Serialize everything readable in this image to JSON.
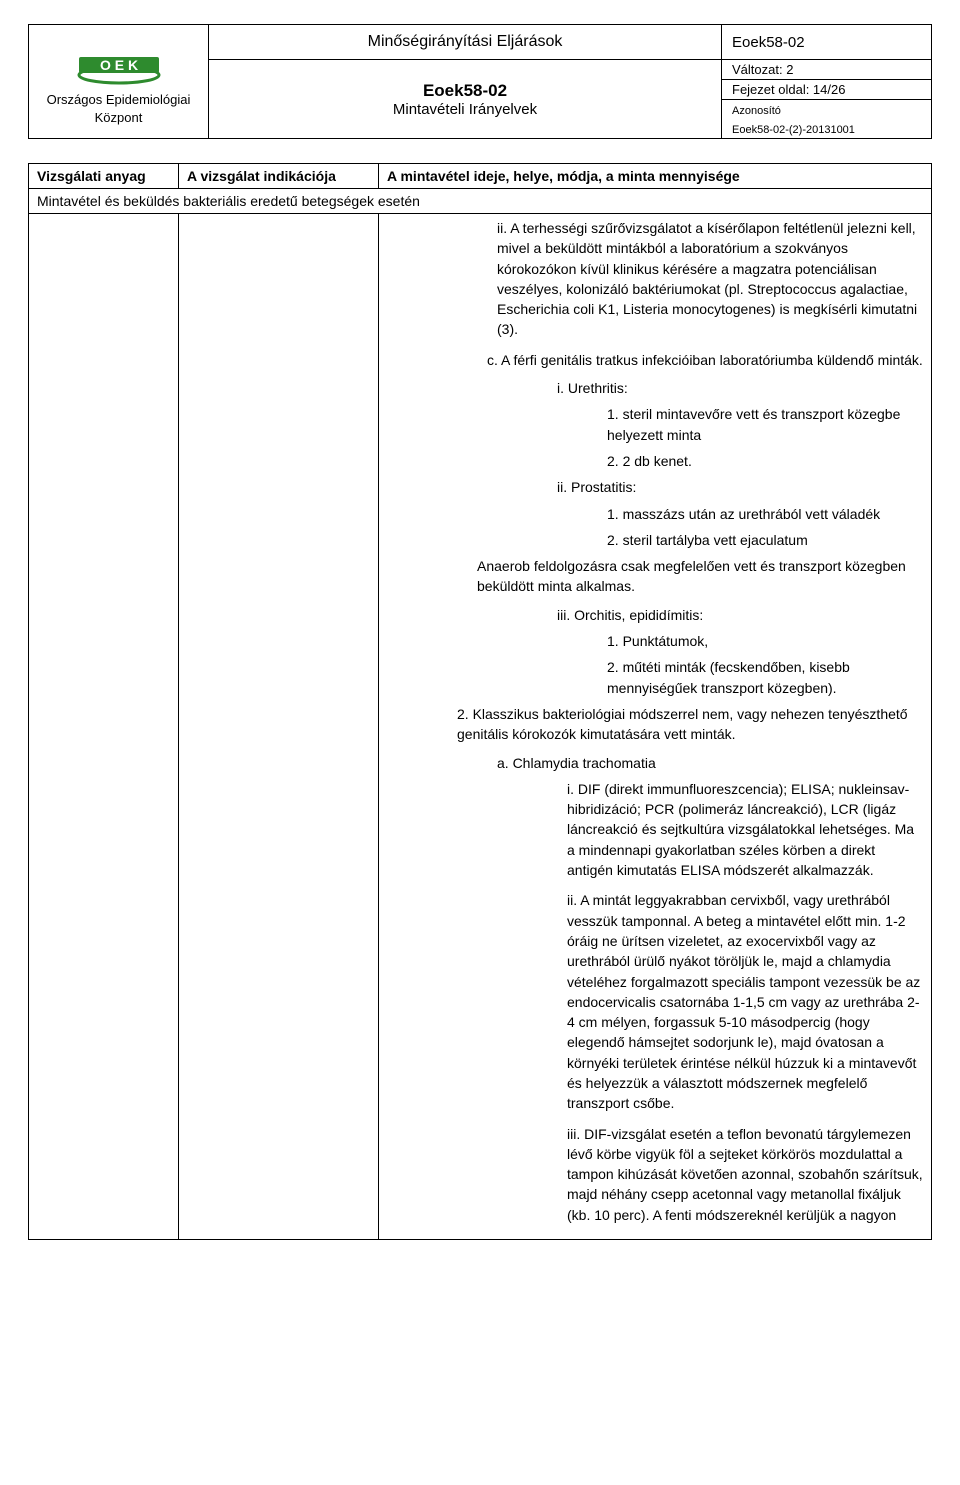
{
  "header": {
    "org_name": "Országos Epidemiológiai\nKözpont",
    "logo_colors": {
      "bar": "#2e8b2e",
      "arc": "#2e8b2e",
      "text": "#1f5a9a"
    },
    "top_title": "Minőségirányítási Eljárások",
    "doc_id": "Eoek58-02",
    "doc_code": "Eoek58-02",
    "doc_subtitle": "Mintavételi Irányelvek",
    "version_label": "Változat: 2",
    "page_label": "Fejezet oldal: 14/26",
    "ident_label": "Azonosító",
    "ident_value": "Eoek58-02-(2)-20131001"
  },
  "table": {
    "col1": "Vizsgálati anyag",
    "col2": "A vizsgálat indikációja",
    "col3": "A mintavétel ideje, helye, módja, a minta mennyisége",
    "subheader": "Mintavétel és beküldés bakteriális eredetű betegségek esetén"
  },
  "body": {
    "ii": "ii. A terhességi szűrővizsgálatot a kísérőlapon feltétlenül jelezni kell, mivel a beküldött mintákból a laboratórium a szokványos kórokozókon kívül klinikus kérésére a magzatra potenciálisan veszélyes, kolonizáló baktériumokat (pl. Streptococcus agalactiae, Escherichia coli K1, Listeria monocytogenes) is megkísérli kimutatni (3).",
    "c": "c. A férfi genitális tratkus infekcióiban laboratóriumba küldendő minták.",
    "c_i": "i. Urethritis:",
    "c_i_1": "1. steril mintavevőre vett és transzport közegbe helyezett minta",
    "c_i_2": "2. 2 db kenet.",
    "c_ii": "ii. Prostatitis:",
    "c_ii_1": "1. masszázs után az urethrából vett váladék",
    "c_ii_2": "2. steril tartályba vett ejaculatum",
    "anaerob": "Anaerob feldolgozásra csak megfelelően vett és transzport közegben beküldött minta alkalmas.",
    "c_iii": "iii. Orchitis, epididímitis:",
    "c_iii_1": "1. Punktátumok,",
    "c_iii_2": "2. műtéti minták (fecskendőben, kisebb mennyiségűek transzport közegben).",
    "sec2": "2. Klasszikus bakteriológiai módszerrel nem, vagy nehezen tenyészthető genitális kórokozók kimutatására vett minták.",
    "sec2_a": "a. Chlamydia trachomatia",
    "sec2_a_i": "i. DIF (direkt immunfluoreszcencia); ELISA; nukleinsav-hibridizáció; PCR (polimeráz láncreakció), LCR (ligáz láncreakció és sejtkultúra vizsgálatokkal lehetséges. Ma a mindennapi gyakorlatban széles körben a direkt antigén kimutatás ELISA módszerét alkalmazzák.",
    "sec2_a_ii": "ii. A mintát leggyakrabban cervixből, vagy urethrából vesszük tamponnal. A beteg a mintavétel előtt min. 1-2 óráig ne ürítsen vizeletet, az exocervixből vagy az urethrából ürülő nyákot töröljük le, majd a chlamydia vételéhez forgalmazott speciális tampont vezessük be az endocervicalis csatornába 1-1,5 cm vagy az urethrába 2-4 cm mélyen, forgassuk 5-10 másodpercig (hogy elegendő hámsejtet sodorjunk le), majd óvatosan a környéki területek érintése nélkül húzzuk ki a mintavevőt és helyezzük a választott módszernek megfelelő transzport csőbe.",
    "sec2_a_iii": "iii. DIF-vizsgálat esetén a teflon bevonatú tárgylemezen lévő körbe vigyük föl a sejteket körkörös mozdulattal a tampon kihúzását követően azonnal, szobahőn szárítsuk, majd néhány csepp acetonnal vagy metanollal fixáljuk (kb. 10 perc). A fenti módszereknél kerüljük a nagyon"
  }
}
